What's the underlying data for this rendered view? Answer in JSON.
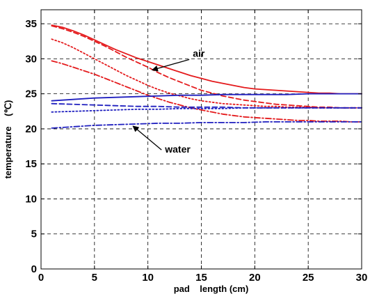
{
  "chart_data": {
    "type": "line",
    "title": "",
    "xlabel": "pad    length (cm)",
    "ylabel": "temperature    (℃)",
    "xlim": [
      0,
      30
    ],
    "ylim": [
      0,
      37
    ],
    "x_ticks": [
      "0",
      "5",
      "10",
      "15",
      "20",
      "25",
      "30"
    ],
    "y_ticks": [
      "0",
      "5",
      "10",
      "15",
      "20",
      "25",
      "30",
      "35"
    ],
    "x_tick_values": [
      0,
      5,
      10,
      15,
      20,
      25,
      30
    ],
    "y_tick_values": [
      0,
      5,
      10,
      15,
      20,
      25,
      30,
      35
    ],
    "grid": true,
    "annotations": [
      {
        "text": "air",
        "x": 14.2,
        "y": 30.3,
        "arrow_to": [
          10.4,
          28.4
        ]
      },
      {
        "text": "water",
        "x": 11.6,
        "y": 16.6,
        "arrow_to": [
          8.6,
          20.4
        ]
      }
    ],
    "series": [
      {
        "color": "#e41a1c",
        "style": "solid",
        "x": [
          1,
          2,
          3,
          4,
          5,
          6,
          7,
          8,
          9,
          10,
          11,
          12,
          13,
          14,
          15,
          16,
          17,
          18,
          19,
          20,
          21,
          22,
          23,
          24,
          25,
          26,
          27,
          28,
          29,
          30
        ],
        "y": [
          34.8,
          34.5,
          34.0,
          33.4,
          32.7,
          32.0,
          31.3,
          30.7,
          30.1,
          29.6,
          29.1,
          28.6,
          28.1,
          27.6,
          27.2,
          26.8,
          26.5,
          26.2,
          25.9,
          25.7,
          25.6,
          25.5,
          25.4,
          25.3,
          25.2,
          25.1,
          25.1,
          25.0,
          25.0,
          25.0
        ]
      },
      {
        "color": "#e41a1c",
        "style": "dash",
        "x": [
          1,
          2,
          3,
          4,
          5,
          6,
          7,
          8,
          9,
          10,
          11,
          12,
          13,
          14,
          15,
          16,
          17,
          18,
          19,
          20,
          21,
          22,
          23,
          24,
          25,
          26,
          27,
          28,
          29,
          30
        ],
        "y": [
          34.7,
          34.3,
          33.8,
          33.2,
          32.5,
          31.8,
          31.0,
          30.2,
          29.5,
          28.8,
          28.0,
          27.3,
          26.7,
          26.1,
          25.5,
          25.1,
          24.7,
          24.4,
          24.1,
          23.9,
          23.7,
          23.5,
          23.4,
          23.3,
          23.2,
          23.1,
          23.1,
          23.0,
          23.0,
          23.0
        ]
      },
      {
        "color": "#e41a1c",
        "style": "dot",
        "x": [
          1,
          2,
          3,
          4,
          5,
          6,
          7,
          8,
          9,
          10,
          11,
          12,
          13,
          14,
          15,
          16,
          17,
          18,
          19,
          20,
          21,
          22,
          23,
          24,
          25,
          26,
          27,
          28,
          29,
          30
        ],
        "y": [
          32.8,
          32.3,
          31.6,
          30.8,
          30.0,
          29.2,
          28.4,
          27.6,
          26.9,
          26.2,
          25.6,
          25.1,
          24.7,
          24.3,
          24.0,
          23.8,
          23.6,
          23.5,
          23.4,
          23.3,
          23.2,
          23.2,
          23.1,
          23.1,
          23.1,
          23.0,
          23.0,
          23.0,
          23.0,
          23.0
        ]
      },
      {
        "color": "#e41a1c",
        "style": "dashdot",
        "x": [
          1,
          2,
          3,
          4,
          5,
          6,
          7,
          8,
          9,
          10,
          11,
          12,
          13,
          14,
          15,
          16,
          17,
          18,
          19,
          20,
          21,
          22,
          23,
          24,
          25,
          26,
          27,
          28,
          29,
          30
        ],
        "y": [
          29.7,
          29.3,
          28.8,
          28.3,
          27.8,
          27.2,
          26.6,
          26.0,
          25.4,
          24.8,
          24.3,
          23.8,
          23.4,
          23.0,
          22.7,
          22.4,
          22.1,
          21.9,
          21.7,
          21.6,
          21.5,
          21.4,
          21.3,
          21.2,
          21.2,
          21.1,
          21.1,
          21.1,
          21.0,
          21.0
        ]
      },
      {
        "color": "#1f1fbf",
        "style": "solid",
        "x": [
          1,
          3,
          5,
          7,
          9,
          11,
          13,
          15,
          17,
          19,
          21,
          23,
          25,
          27,
          30
        ],
        "y": [
          24.0,
          24.2,
          24.4,
          24.5,
          24.6,
          24.7,
          24.8,
          24.8,
          24.9,
          24.9,
          24.9,
          24.9,
          25.0,
          25.0,
          25.0
        ]
      },
      {
        "color": "#1f1fbf",
        "style": "dash",
        "x": [
          1,
          3,
          5,
          7,
          9,
          11,
          13,
          15,
          17,
          19,
          21,
          23,
          25,
          27,
          30
        ],
        "y": [
          23.6,
          23.5,
          23.4,
          23.3,
          23.2,
          23.2,
          23.1,
          23.1,
          23.1,
          23.0,
          23.0,
          23.0,
          23.0,
          23.0,
          23.0
        ]
      },
      {
        "color": "#1f1fbf",
        "style": "dot",
        "x": [
          1,
          3,
          5,
          7,
          9,
          11,
          13,
          15,
          17,
          19,
          21,
          23,
          25,
          27,
          30
        ],
        "y": [
          22.4,
          22.5,
          22.6,
          22.7,
          22.8,
          22.8,
          22.9,
          22.9,
          22.9,
          23.0,
          23.0,
          23.0,
          23.0,
          23.0,
          23.0
        ]
      },
      {
        "color": "#1f1fbf",
        "style": "dashdot",
        "x": [
          1,
          3,
          5,
          7,
          9,
          11,
          13,
          15,
          17,
          19,
          21,
          23,
          25,
          27,
          30
        ],
        "y": [
          20.1,
          20.3,
          20.5,
          20.6,
          20.7,
          20.8,
          20.8,
          20.9,
          20.9,
          20.9,
          21.0,
          21.0,
          21.0,
          21.0,
          21.0
        ]
      }
    ]
  }
}
